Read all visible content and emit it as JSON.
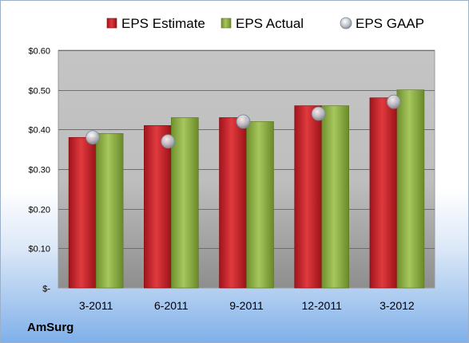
{
  "company": "AmSurg",
  "chart_data": {
    "type": "bar",
    "categories": [
      "3-2011",
      "6-2011",
      "9-2011",
      "12-2011",
      "3-2012"
    ],
    "series": [
      {
        "name": "EPS Estimate",
        "kind": "bar",
        "color": "#c0202a",
        "values": [
          0.38,
          0.41,
          0.43,
          0.46,
          0.48
        ]
      },
      {
        "name": "EPS Actual",
        "kind": "bar",
        "color": "#8cb043",
        "values": [
          0.39,
          0.43,
          0.42,
          0.46,
          0.5
        ]
      },
      {
        "name": "EPS GAAP",
        "kind": "marker",
        "color": "#b0b8c4",
        "values": [
          0.38,
          0.37,
          0.42,
          0.44,
          0.47
        ]
      }
    ],
    "y_ticks": [
      {
        "value": 0.0,
        "label": "$-"
      },
      {
        "value": 0.1,
        "label": "$0.10"
      },
      {
        "value": 0.2,
        "label": "$0.20"
      },
      {
        "value": 0.3,
        "label": "$0.30"
      },
      {
        "value": 0.4,
        "label": "$0.40"
      },
      {
        "value": 0.5,
        "label": "$0.50"
      },
      {
        "value": 0.6,
        "label": "$0.60"
      }
    ],
    "ylim": [
      0,
      0.6
    ],
    "grid": true,
    "legend_position": "top"
  }
}
